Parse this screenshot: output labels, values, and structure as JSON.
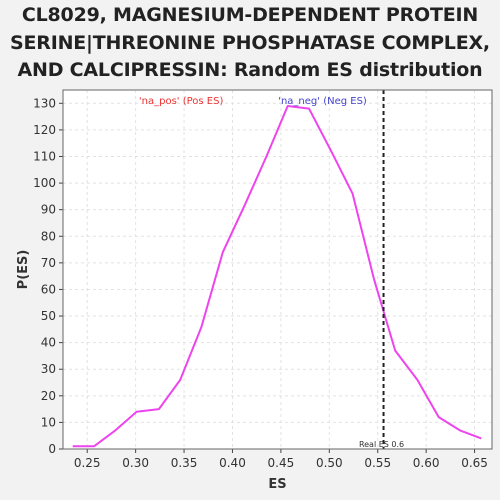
{
  "title_lines": [
    "CL8029, MAGNESIUM-DEPENDENT PROTEIN",
    "SERINE|THREONINE PHOSPHATASE COMPLEX,",
    "AND CALCIPRESSIN: Random ES distribution"
  ],
  "chart_data": {
    "type": "line",
    "title": "CL8029, MAGNESIUM-DEPENDENT PROTEIN SERINE|THREONINE PHOSPHATASE COMPLEX, AND CALCIPRESSIN: Random ES distribution",
    "xlabel": "ES",
    "ylabel": "P(ES)",
    "xlim": [
      0.225,
      0.668
    ],
    "ylim": [
      0,
      135
    ],
    "xticks": [
      0.25,
      0.3,
      0.35,
      0.4,
      0.45,
      0.5,
      0.55,
      0.6,
      0.65
    ],
    "xtick_labels": [
      "0.25",
      "0.30",
      "0.35",
      "0.40",
      "0.45",
      "0.50",
      "0.55",
      "0.60",
      "0.65"
    ],
    "yticks": [
      0,
      10,
      20,
      30,
      40,
      50,
      60,
      70,
      80,
      90,
      100,
      110,
      120,
      130
    ],
    "ytick_labels": [
      "0",
      "10",
      "20",
      "30",
      "40",
      "50",
      "60",
      "70",
      "80",
      "90",
      "100",
      "110",
      "120",
      "130"
    ],
    "grid": true,
    "series": [
      {
        "color": "#ee44ee",
        "x": [
          0.235,
          0.257,
          0.279,
          0.301,
          0.324,
          0.346,
          0.368,
          0.39,
          0.413,
          0.435,
          0.457,
          0.479,
          0.502,
          0.524,
          0.546,
          0.568,
          0.591,
          0.613,
          0.635,
          0.657
        ],
        "y": [
          1,
          1,
          7,
          14,
          15,
          26,
          46,
          74,
          92,
          110,
          129,
          128,
          112,
          96,
          64,
          37,
          26,
          12,
          7,
          4
        ]
      }
    ],
    "vline": {
      "x": 0.556,
      "label": "Real ES 0.6",
      "color": "#222222"
    },
    "annotations": [
      {
        "text": "'na_pos' (Pos ES)",
        "color": "#ee3333",
        "x": 0.347
      },
      {
        "text": "'na_neg' (Neg ES)",
        "color": "#4444cc",
        "x": 0.493
      }
    ]
  }
}
